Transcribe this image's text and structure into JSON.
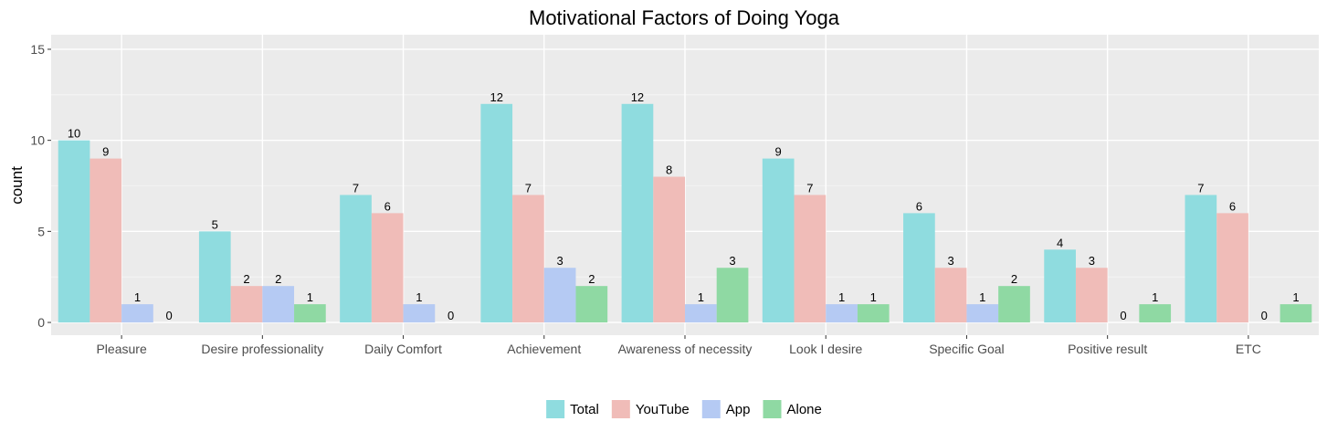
{
  "chart_data": {
    "type": "bar",
    "title": "Motivational Factors of Doing Yoga",
    "xlabel": "",
    "ylabel": "count",
    "ylim": [
      -0.7,
      15.8
    ],
    "yticks": [
      0,
      5,
      10,
      15
    ],
    "categories": [
      "Pleasure",
      "Desire professionality",
      "Daily Comfort",
      "Achievement",
      "Awareness of necessity",
      "Look I desire",
      "Specific Goal",
      "Positive result",
      "ETC"
    ],
    "series": [
      {
        "name": "Total",
        "color": "#8fdcdf",
        "values": [
          10,
          5,
          7,
          12,
          12,
          9,
          6,
          4,
          7
        ]
      },
      {
        "name": "YouTube",
        "color": "#f0bcb8",
        "values": [
          9,
          2,
          6,
          7,
          8,
          7,
          3,
          3,
          6
        ]
      },
      {
        "name": "App",
        "color": "#b5caf3",
        "values": [
          1,
          2,
          1,
          3,
          1,
          1,
          1,
          0,
          0
        ]
      },
      {
        "name": "Alone",
        "color": "#8fd9a3",
        "values": [
          0,
          1,
          0,
          2,
          3,
          1,
          2,
          1,
          1
        ]
      }
    ],
    "grid": true,
    "legend_position": "bottom"
  }
}
